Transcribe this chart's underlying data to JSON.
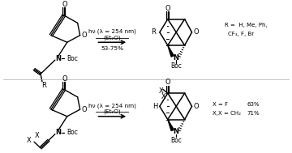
{
  "background": "#ffffff",
  "reaction1": {
    "conditions_line1": "hν (λ = 254 nm)",
    "conditions_line2": "(Et₂O)",
    "yield": "53-75%",
    "r_groups": "R =  H, Me, Ph,",
    "r_groups2": "CF₃, F, Br"
  },
  "reaction2": {
    "conditions_line1": "hν (λ = 254 nm)",
    "conditions_line2": "(Et₂O)",
    "x_groups1": "X = F",
    "x_yield1": "63%",
    "x_groups2": "X,X = CH₂",
    "x_yield2": "71%"
  }
}
